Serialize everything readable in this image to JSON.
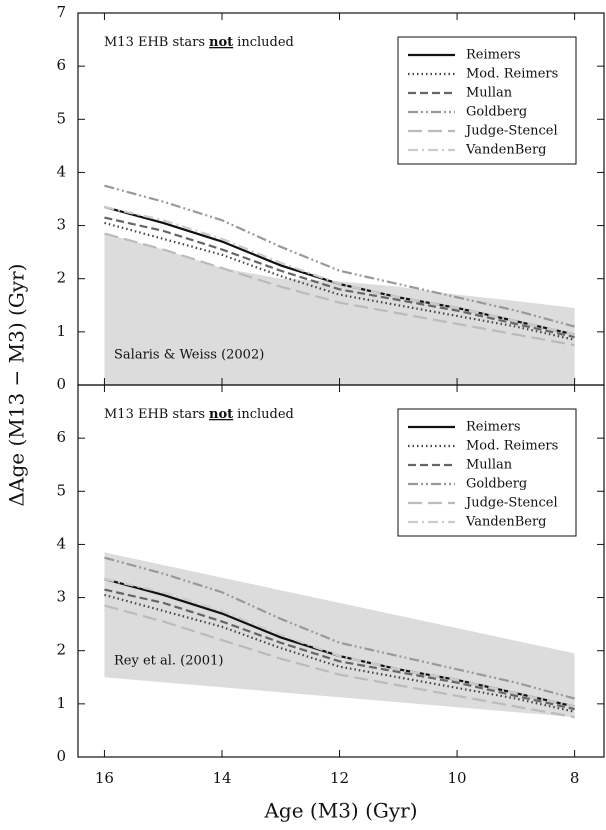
{
  "chart_data": [
    {
      "type": "line",
      "ylabel": "ΔAge (M13 − M3) (Gyr)",
      "note": {
        "before": "M13 EHB stars",
        "emph": "not",
        "after": "included"
      },
      "xlim": [
        16.45,
        7.5
      ],
      "ylim": [
        0,
        7
      ],
      "yticks": [
        0,
        1,
        2,
        3,
        4,
        5,
        6,
        7
      ],
      "x": [
        16,
        15,
        14,
        13,
        12,
        11,
        10,
        9,
        8
      ],
      "band": {
        "name": "Salaris & Weiss (2002)",
        "color": "#dcdcdc",
        "x": [
          16,
          15,
          14,
          13,
          12,
          11,
          10,
          9,
          8
        ],
        "upper": [
          2.85,
          2.55,
          2.2,
          2.0,
          1.95,
          1.85,
          1.7,
          1.58,
          1.45
        ],
        "lower": [
          0,
          0,
          0,
          0,
          0,
          0,
          0,
          0,
          0
        ]
      },
      "series": [
        {
          "name": "Reimers",
          "color": "#111111",
          "dash": "solid",
          "values": [
            3.35,
            3.05,
            2.7,
            2.25,
            1.9,
            1.65,
            1.45,
            1.2,
            0.95
          ]
        },
        {
          "name": "Mod. Reimers",
          "color": "#444444",
          "dash": "dotted",
          "values": [
            3.05,
            2.75,
            2.45,
            2.05,
            1.7,
            1.5,
            1.3,
            1.1,
            0.85
          ]
        },
        {
          "name": "Mullan",
          "color": "#666666",
          "dash": "dashed",
          "values": [
            3.15,
            2.9,
            2.55,
            2.15,
            1.8,
            1.6,
            1.4,
            1.15,
            0.9
          ]
        },
        {
          "name": "Goldberg",
          "color": "#999999",
          "dash": "dashdotdot",
          "values": [
            3.75,
            3.45,
            3.1,
            2.6,
            2.15,
            1.9,
            1.65,
            1.4,
            1.1
          ]
        },
        {
          "name": "Judge-Stencel",
          "color": "#bbbbbb",
          "dash": "longdash",
          "values": [
            2.85,
            2.55,
            2.2,
            1.85,
            1.55,
            1.35,
            1.15,
            0.95,
            0.75
          ]
        },
        {
          "name": "VandenBerg",
          "color": "#cccccc",
          "dash": "dashdot",
          "values": [
            3.35,
            3.1,
            2.75,
            2.3,
            1.9,
            1.65,
            1.45,
            1.2,
            0.95
          ]
        }
      ]
    },
    {
      "type": "line",
      "xlabel": "Age (M3) (Gyr)",
      "note": {
        "before": "M13 EHB stars",
        "emph": "not",
        "after": "included"
      },
      "xlim": [
        16.45,
        7.5
      ],
      "xticks": [
        16,
        14,
        12,
        10,
        8
      ],
      "ylim": [
        0,
        7
      ],
      "yticks": [
        0,
        1,
        2,
        3,
        4,
        5,
        6
      ],
      "x": [
        16,
        15,
        14,
        13,
        12,
        11,
        10,
        9,
        8
      ],
      "band": {
        "name": "Rey et al. (2001)",
        "color": "#dcdcdc",
        "x": [
          16,
          8
        ],
        "upper": [
          3.85,
          1.95
        ],
        "lower": [
          1.5,
          0.75
        ]
      },
      "series": [
        {
          "name": "Reimers",
          "color": "#111111",
          "dash": "solid",
          "values": [
            3.35,
            3.05,
            2.7,
            2.25,
            1.9,
            1.65,
            1.45,
            1.2,
            0.95
          ]
        },
        {
          "name": "Mod. Reimers",
          "color": "#444444",
          "dash": "dotted",
          "values": [
            3.05,
            2.75,
            2.45,
            2.05,
            1.7,
            1.5,
            1.3,
            1.1,
            0.85
          ]
        },
        {
          "name": "Mullan",
          "color": "#666666",
          "dash": "dashed",
          "values": [
            3.15,
            2.9,
            2.55,
            2.15,
            1.8,
            1.6,
            1.4,
            1.15,
            0.9
          ]
        },
        {
          "name": "Goldberg",
          "color": "#999999",
          "dash": "dashdotdot",
          "values": [
            3.75,
            3.45,
            3.1,
            2.6,
            2.15,
            1.9,
            1.65,
            1.4,
            1.1
          ]
        },
        {
          "name": "Judge-Stencel",
          "color": "#bbbbbb",
          "dash": "longdash",
          "values": [
            2.85,
            2.55,
            2.2,
            1.85,
            1.55,
            1.35,
            1.15,
            0.95,
            0.75
          ]
        },
        {
          "name": "VandenBerg",
          "color": "#cccccc",
          "dash": "dashdot",
          "values": [
            3.35,
            3.1,
            2.75,
            2.3,
            1.9,
            1.65,
            1.45,
            1.2,
            0.95
          ]
        }
      ]
    }
  ]
}
